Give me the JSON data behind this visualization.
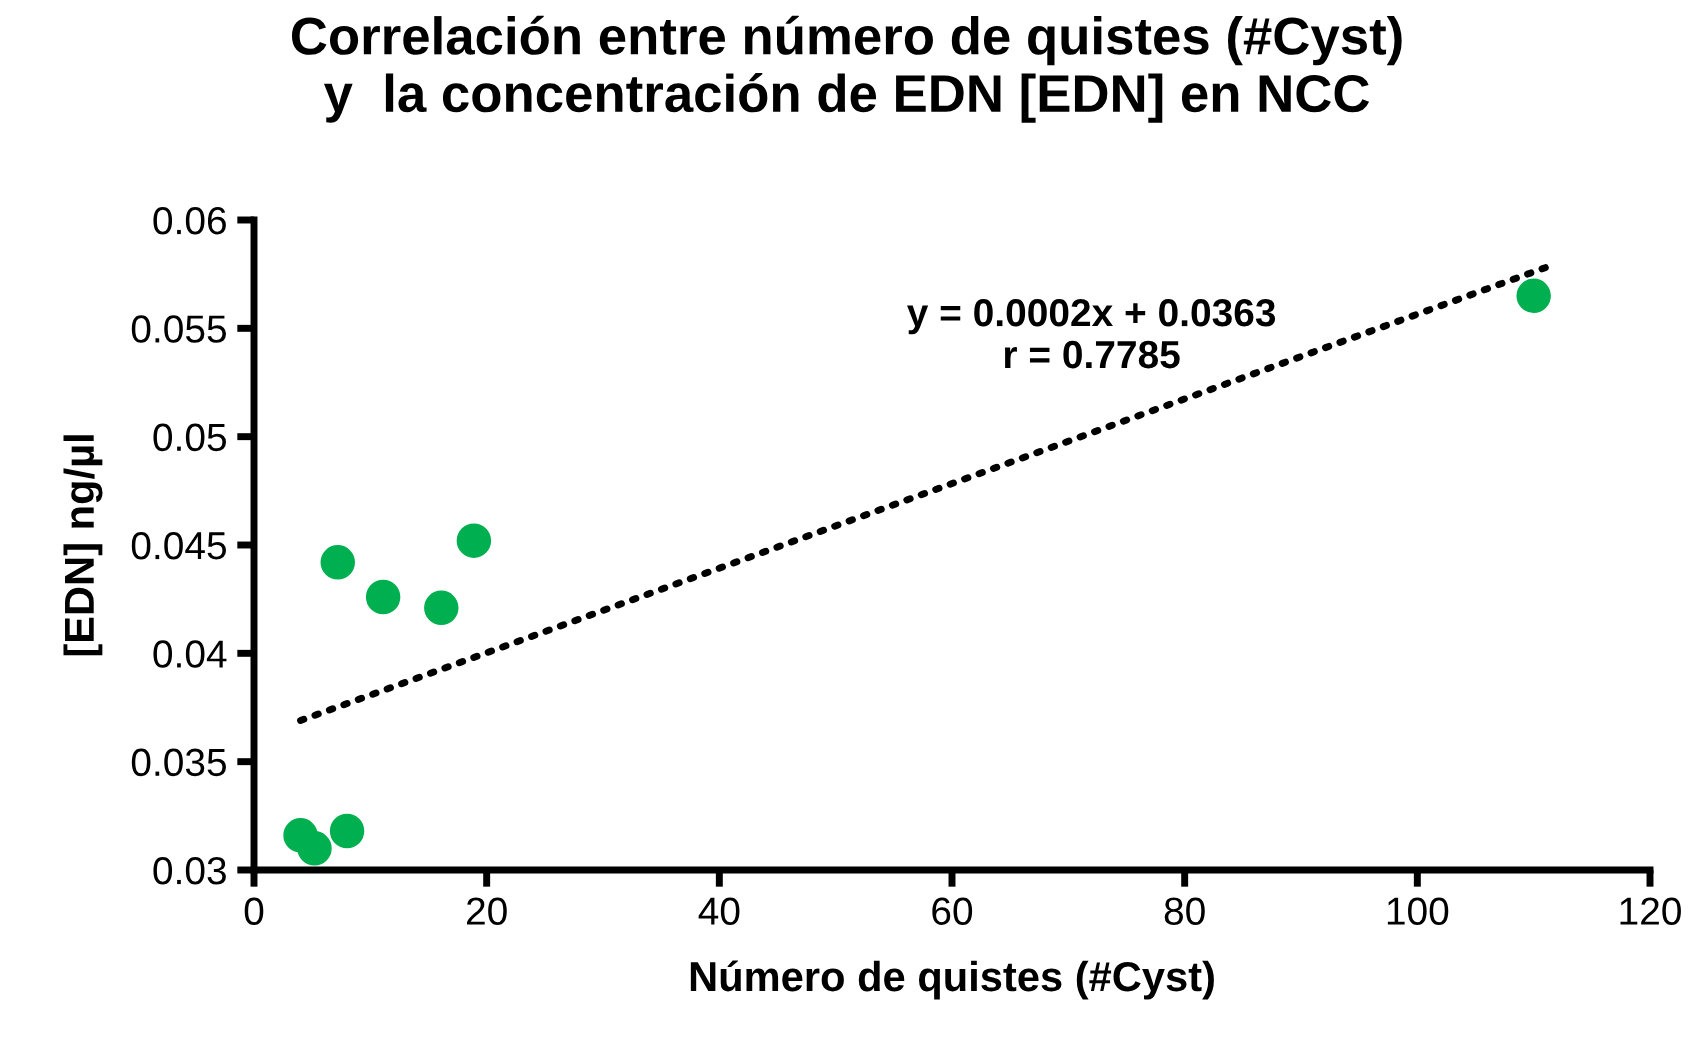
{
  "chart_data": {
    "type": "scatter",
    "title": "Correlación entre número de quistes (#Cyst)\ny  la concentración de EDN [EDN] en NCC",
    "xlabel": "Número de quistes (#Cyst)",
    "ylabel": "[EDN] ng/µl",
    "series": [
      {
        "color": "#00b050",
        "x": [
          4.0,
          5.2,
          8.0,
          7.2,
          11.1,
          16.1,
          18.9,
          110
        ],
        "values": [
          0.0316,
          0.031,
          0.0318,
          0.0442,
          0.0426,
          0.0421,
          0.0452,
          0.0565
        ],
        "marker": "circle"
      },
      {
        "type": "line",
        "color": "#000000",
        "x": [
          4,
          111
        ],
        "values": [
          0.0369,
          0.0578
        ],
        "line_style": "dotted",
        "marker": "none"
      }
    ],
    "annotations": [
      "y = 0.0002x + 0.0363\nr = 0.7785"
    ],
    "xlim": [
      0,
      120
    ],
    "xticks": [
      0,
      20,
      40,
      60,
      80,
      100,
      120
    ],
    "ylim": [
      0.03,
      0.06
    ],
    "yticks": [
      0.03,
      0.035,
      0.04,
      0.045,
      0.05,
      0.055,
      0.06
    ],
    "grid": false,
    "legend": false
  }
}
